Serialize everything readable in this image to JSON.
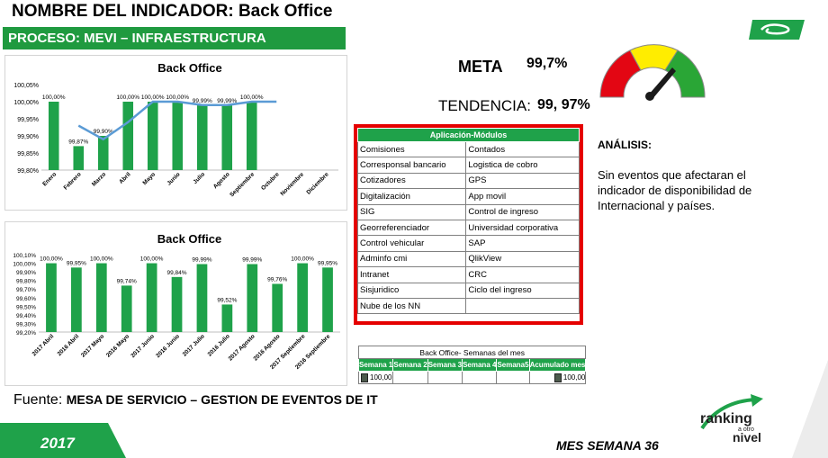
{
  "header": {
    "indicator_label": "NOMBRE DEL INDICADOR:",
    "indicator_value": "Back Office",
    "process": "PROCESO:  MEVI – INFRAESTRUCTURA"
  },
  "meta": {
    "label": "META",
    "value": "99,7%"
  },
  "tendencia": {
    "label": "TENDENCIA:",
    "value": "99, 97%"
  },
  "gauge": {
    "zones": [
      "#e30613",
      "#ffed00",
      "#2aa636"
    ],
    "needle_color": "#1a1a1a"
  },
  "chart_data": [
    {
      "type": "bar",
      "title": "Back Office",
      "categories": [
        "Enero",
        "Febrero",
        "Marzo",
        "Abril",
        "Mayo",
        "Junio",
        "Julio",
        "Agosto",
        "Septiembre",
        "Octubre",
        "Noviembre",
        "Diciembre"
      ],
      "series": [
        {
          "values": [
            100.0,
            99.87,
            99.9,
            100.0,
            100.0,
            100.0,
            99.99,
            99.99,
            100.0,
            null,
            null,
            null
          ],
          "labels": [
            "100,00%",
            "99,87%",
            "99,90%",
            "100,00%",
            "100,00%",
            "100,00%",
            "99,99%",
            "99,99%",
            "100,00%",
            "",
            "",
            ""
          ],
          "color": "#1fa24a"
        },
        {
          "type": "line",
          "values": [
            null,
            99.93,
            99.89,
            99.94,
            100.0,
            100.0,
            99.99,
            99.99,
            100.0,
            100.0,
            null,
            null
          ],
          "color": "#5b9bd5"
        }
      ],
      "yticks": [
        "100,05%",
        "100,00%",
        "99,95%",
        "99,90%",
        "99,85%",
        "99,80%"
      ],
      "ylim": [
        99.8,
        100.05
      ]
    },
    {
      "type": "bar",
      "title": "Back Office",
      "categories": [
        "2017 Abril",
        "2016 Abril",
        "2017 Mayo",
        "2016 Mayo",
        "2017 Junio",
        "2016 Junio",
        "2017 Julio",
        "2016 Julio",
        "2017 Agosto",
        "2016 Agosto",
        "2017 Septiembre",
        "2016 Septiembre"
      ],
      "series": [
        {
          "values": [
            100.0,
            99.95,
            100.0,
            99.74,
            100.0,
            99.84,
            99.99,
            99.52,
            99.99,
            99.76,
            100.0,
            99.95
          ],
          "labels": [
            "100,00%",
            "99,95%",
            "100,00%",
            "99,74%",
            "100,00%",
            "99,84%",
            "99,99%",
            "99,52%",
            "99,99%",
            "99,76%",
            "100,00%",
            "99,95%"
          ],
          "color": "#1fa24a"
        }
      ],
      "yticks": [
        "100,10%",
        "100,00%",
        "99,90%",
        "99,80%",
        "99,70%",
        "99,60%",
        "99,50%",
        "99,40%",
        "99,30%",
        "99,20%"
      ],
      "ylim": [
        99.2,
        100.1
      ]
    }
  ],
  "modules": {
    "header": "Aplicación-Módulos",
    "rows": [
      [
        "Comisiones",
        "Contados"
      ],
      [
        "Corresponsal bancario",
        "Logistica de cobro"
      ],
      [
        "Cotizadores",
        "GPS"
      ],
      [
        "Digitalización",
        "App movil"
      ],
      [
        "SIG",
        "Control de ingreso"
      ],
      [
        "Georreferenciador",
        "Universidad corporativa"
      ],
      [
        "Control vehicular",
        "SAP"
      ],
      [
        "Adminfo cmi",
        "QlikView"
      ],
      [
        "Intranet",
        "CRC"
      ],
      [
        "Sisjuridico",
        "Ciclo del ingreso"
      ],
      [
        "Nube de los NN",
        ""
      ]
    ]
  },
  "analysis": {
    "heading": "ANÁLISIS:",
    "text": "Sin eventos que afectaran el indicador de disponibilidad de Internacional y países."
  },
  "weeks": {
    "caption": "Back Office- Semanas del mes",
    "headers": [
      "Semana 1",
      "Semana 2",
      "Semana 3",
      "Semana 4",
      "Semana5",
      "Acumulado mes"
    ],
    "row": [
      "100,00",
      "",
      "",
      "",
      "",
      "100,00"
    ]
  },
  "source": {
    "label": "Fuente: ",
    "value": "MESA DE SERVICIO – GESTION DE EVENTOS DE IT"
  },
  "footer": {
    "year": "2017",
    "week": "MES SEMANA 36"
  },
  "ranking_logo": {
    "line1": "ranking",
    "line2": "a otro",
    "line3": "nivel"
  }
}
